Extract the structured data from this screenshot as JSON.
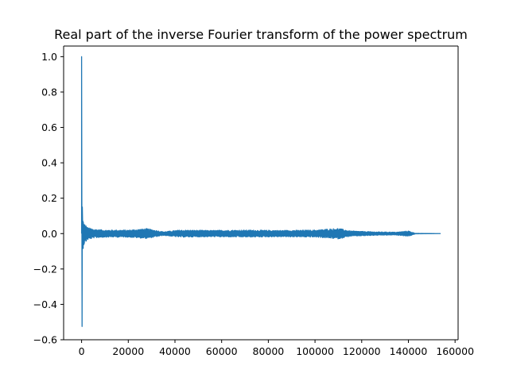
{
  "chart_data": {
    "type": "line",
    "title": "Real part of the inverse Fourier transform of the power spectrum",
    "xlabel": "",
    "ylabel": "",
    "xlim": [
      -7700,
      161300
    ],
    "ylim": [
      -0.6,
      1.06
    ],
    "x_ticks": [
      0,
      20000,
      40000,
      60000,
      80000,
      100000,
      120000,
      140000,
      160000
    ],
    "x_tick_labels": [
      "0",
      "20000",
      "40000",
      "60000",
      "80000",
      "100000",
      "120000",
      "140000",
      "160000"
    ],
    "y_ticks": [
      -0.6,
      -0.4,
      -0.2,
      0.0,
      0.2,
      0.4,
      0.6,
      0.8,
      1.0
    ],
    "y_tick_labels": [
      "−0.6",
      "−0.4",
      "−0.2",
      "0.0",
      "0.2",
      "0.4",
      "0.6",
      "0.8",
      "1.0"
    ],
    "grid": false,
    "series": [
      {
        "color": "#1f77b4",
        "peak": {
          "x": 0,
          "y": 1.0
        },
        "trough": {
          "x": 0,
          "y": -0.525
        },
        "x_end": 153600,
        "envelope": [
          {
            "x": 0,
            "amp": 0.2
          },
          {
            "x": 300,
            "amp": 0.1
          },
          {
            "x": 1000,
            "amp": 0.06
          },
          {
            "x": 2500,
            "amp": 0.035
          },
          {
            "x": 5000,
            "amp": 0.025
          },
          {
            "x": 10000,
            "amp": 0.02
          },
          {
            "x": 20000,
            "amp": 0.02
          },
          {
            "x": 28000,
            "amp": 0.028
          },
          {
            "x": 35000,
            "amp": 0.01
          },
          {
            "x": 42000,
            "amp": 0.02
          },
          {
            "x": 55000,
            "amp": 0.018
          },
          {
            "x": 70000,
            "amp": 0.02
          },
          {
            "x": 85000,
            "amp": 0.018
          },
          {
            "x": 100000,
            "amp": 0.02
          },
          {
            "x": 110000,
            "amp": 0.03
          },
          {
            "x": 115000,
            "amp": 0.015
          },
          {
            "x": 125000,
            "amp": 0.01
          },
          {
            "x": 135000,
            "amp": 0.008
          },
          {
            "x": 140000,
            "amp": 0.015
          },
          {
            "x": 143000,
            "amp": 0.001
          },
          {
            "x": 153600,
            "amp": 0.0
          }
        ]
      }
    ]
  }
}
